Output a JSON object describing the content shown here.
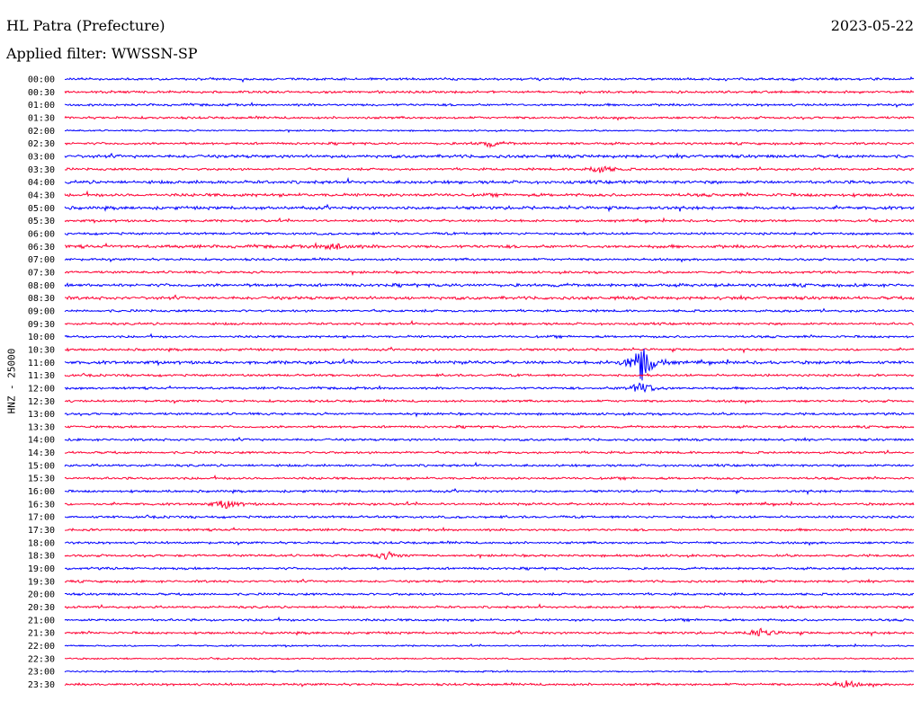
{
  "header": {
    "station": "HL Patra (Prefecture)",
    "date": "2023-05-22",
    "filter": "Applied filter: WWSSN-SP"
  },
  "channel_label": "HNZ - 25000",
  "colors": {
    "even": "#0000ff",
    "odd": "#ff0033"
  },
  "chart_data": {
    "type": "line",
    "title": "HL Patra (Prefecture)",
    "ylabel": "HNZ - 25000",
    "rows": [
      "00:00",
      "00:30",
      "01:00",
      "01:30",
      "02:00",
      "02:30",
      "03:00",
      "03:30",
      "04:00",
      "04:30",
      "05:00",
      "05:30",
      "06:00",
      "06:30",
      "07:00",
      "07:30",
      "08:00",
      "08:30",
      "09:00",
      "09:30",
      "10:00",
      "10:30",
      "11:00",
      "11:30",
      "12:00",
      "12:30",
      "13:00",
      "13:30",
      "14:00",
      "14:30",
      "15:00",
      "15:30",
      "16:00",
      "16:30",
      "17:00",
      "17:30",
      "18:00",
      "18:30",
      "19:00",
      "19:30",
      "20:00",
      "20:30",
      "21:00",
      "21:30",
      "22:00",
      "22:30",
      "23:00",
      "23:30"
    ],
    "row_noise": [
      3,
      3,
      3,
      3,
      2,
      3,
      4,
      3,
      4,
      4,
      4,
      3,
      3,
      4,
      3,
      3,
      4,
      4,
      3,
      3,
      3,
      3,
      4,
      3,
      3,
      3,
      3,
      3,
      3,
      3,
      3,
      3,
      3,
      3,
      3,
      3,
      3,
      3,
      3,
      3,
      3,
      3,
      3,
      3,
      2,
      2,
      2,
      3
    ],
    "events": [
      {
        "row": "02:30",
        "pos": 0.5,
        "amp": 6
      },
      {
        "row": "03:30",
        "pos": 0.63,
        "amp": 9
      },
      {
        "row": "06:30",
        "pos": 0.32,
        "amp": 8
      },
      {
        "row": "11:00",
        "pos": 0.68,
        "amp": 40
      },
      {
        "row": "12:00",
        "pos": 0.68,
        "amp": 14
      },
      {
        "row": "16:30",
        "pos": 0.19,
        "amp": 9
      },
      {
        "row": "18:30",
        "pos": 0.38,
        "amp": 8
      },
      {
        "row": "21:30",
        "pos": 0.82,
        "amp": 10
      },
      {
        "row": "23:30",
        "pos": 0.92,
        "amp": 8
      }
    ]
  }
}
